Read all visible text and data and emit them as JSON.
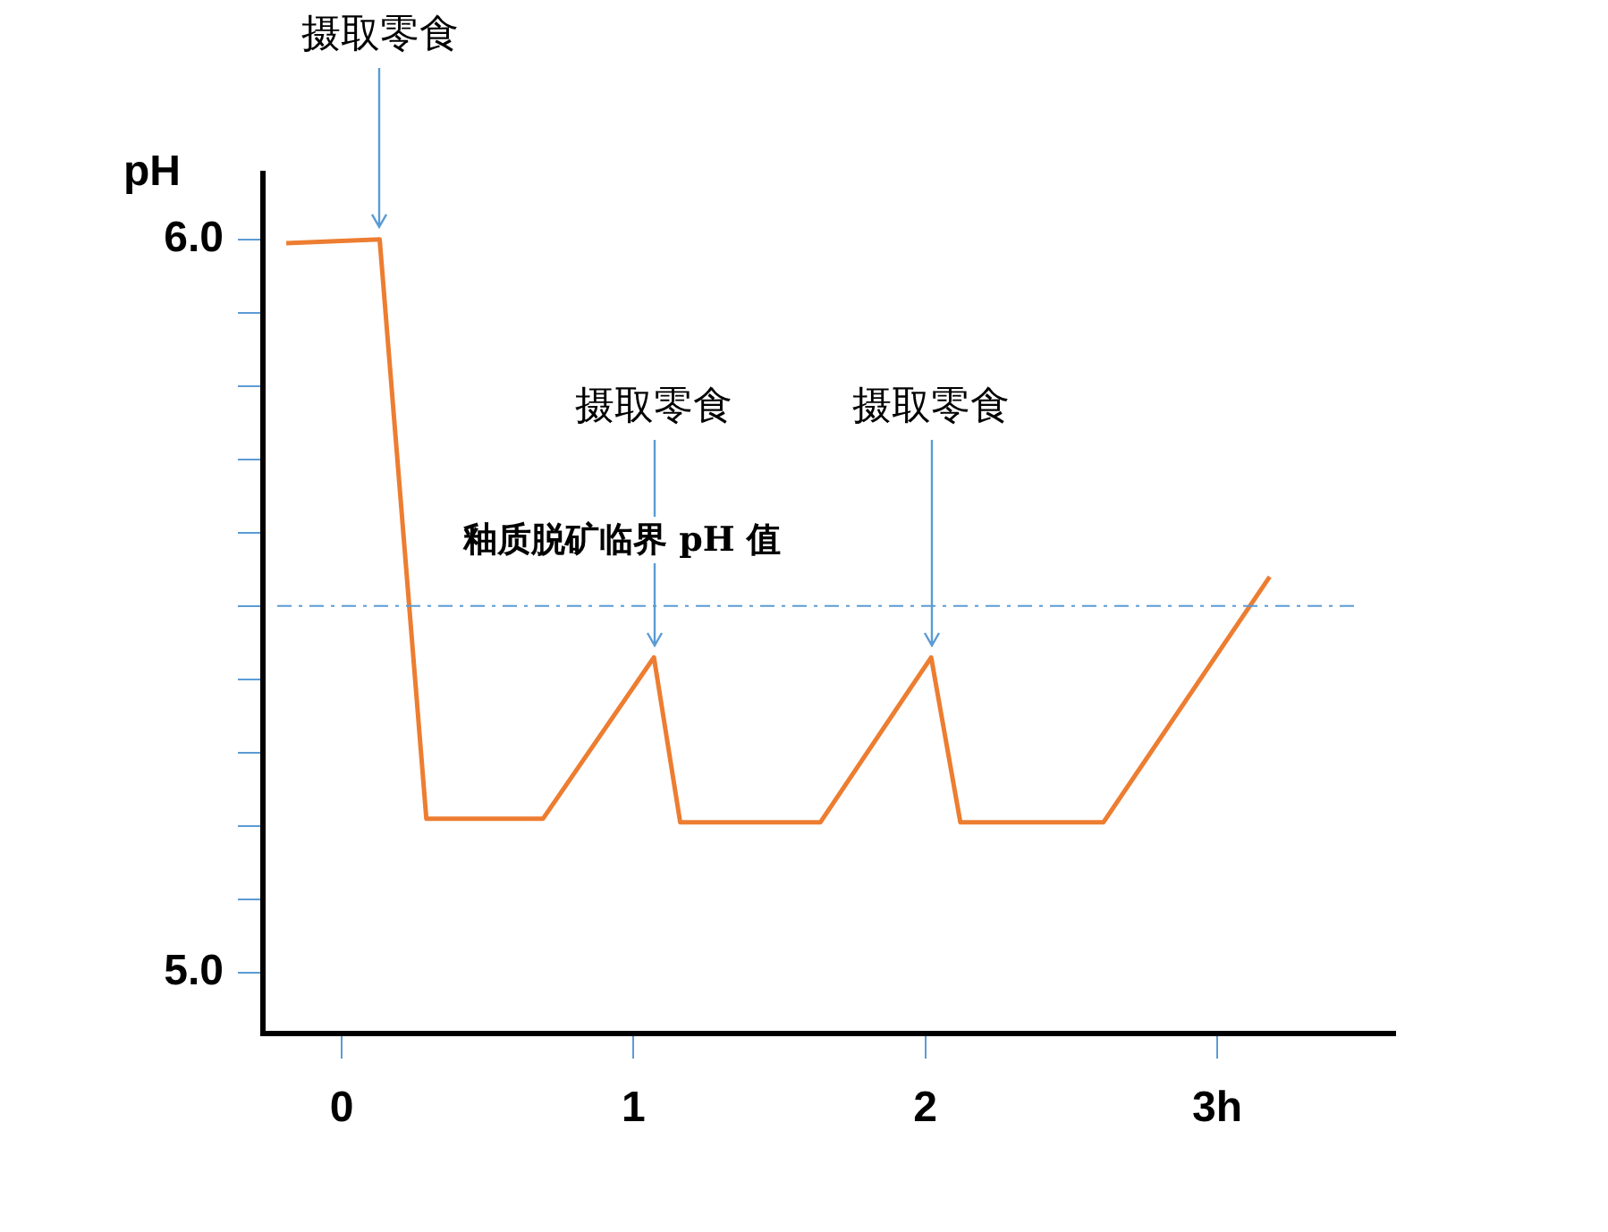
{
  "chart_data": {
    "type": "line",
    "ylabel": "pH",
    "x": [
      -0.19,
      0.13,
      0.29,
      0.69,
      1.07,
      1.16,
      1.64,
      2.02,
      2.12,
      2.61,
      3.18
    ],
    "series": [
      {
        "color": "#ed7d31",
        "values": [
          5.995,
          6.0,
          5.21,
          5.21,
          5.43,
          5.205,
          5.205,
          5.43,
          5.205,
          5.205,
          5.54
        ]
      }
    ],
    "xlim": [
      -0.27,
      3.61
    ],
    "xticks": [
      0,
      1,
      2,
      {
        "value": 3,
        "label": "3h"
      }
    ],
    "ylim": [
      4.917,
      6.09
    ],
    "yticks": [
      {
        "value": 5.0,
        "label": "5.0"
      },
      {
        "value": 5.1,
        "label": null
      },
      {
        "value": 5.2,
        "label": null
      },
      {
        "value": 5.3,
        "label": null
      },
      {
        "value": 5.4,
        "label": null
      },
      {
        "value": 5.5,
        "label": null
      },
      {
        "value": 5.6,
        "label": null
      },
      {
        "value": 5.7,
        "label": null
      },
      {
        "value": 5.8,
        "label": null
      },
      {
        "value": 5.9,
        "label": null
      },
      {
        "value": 6.0,
        "label": "6.0"
      }
    ],
    "ref_lines": [
      {
        "axis": "y",
        "value": 5.5,
        "label": "釉质脱矿临界 pH 值",
        "color": "#5b9bd5",
        "line_style": "dashdot"
      }
    ],
    "annotations": [
      {
        "text": "摄取零食",
        "x": 0.13,
        "y": 6.0
      },
      {
        "text": "摄取零食",
        "x": 1.07,
        "y": 5.43
      },
      {
        "text": "摄取零食",
        "x": 2.02,
        "y": 5.43
      }
    ],
    "grid": false,
    "legend": false,
    "marker": "none",
    "line_style": "solid"
  }
}
